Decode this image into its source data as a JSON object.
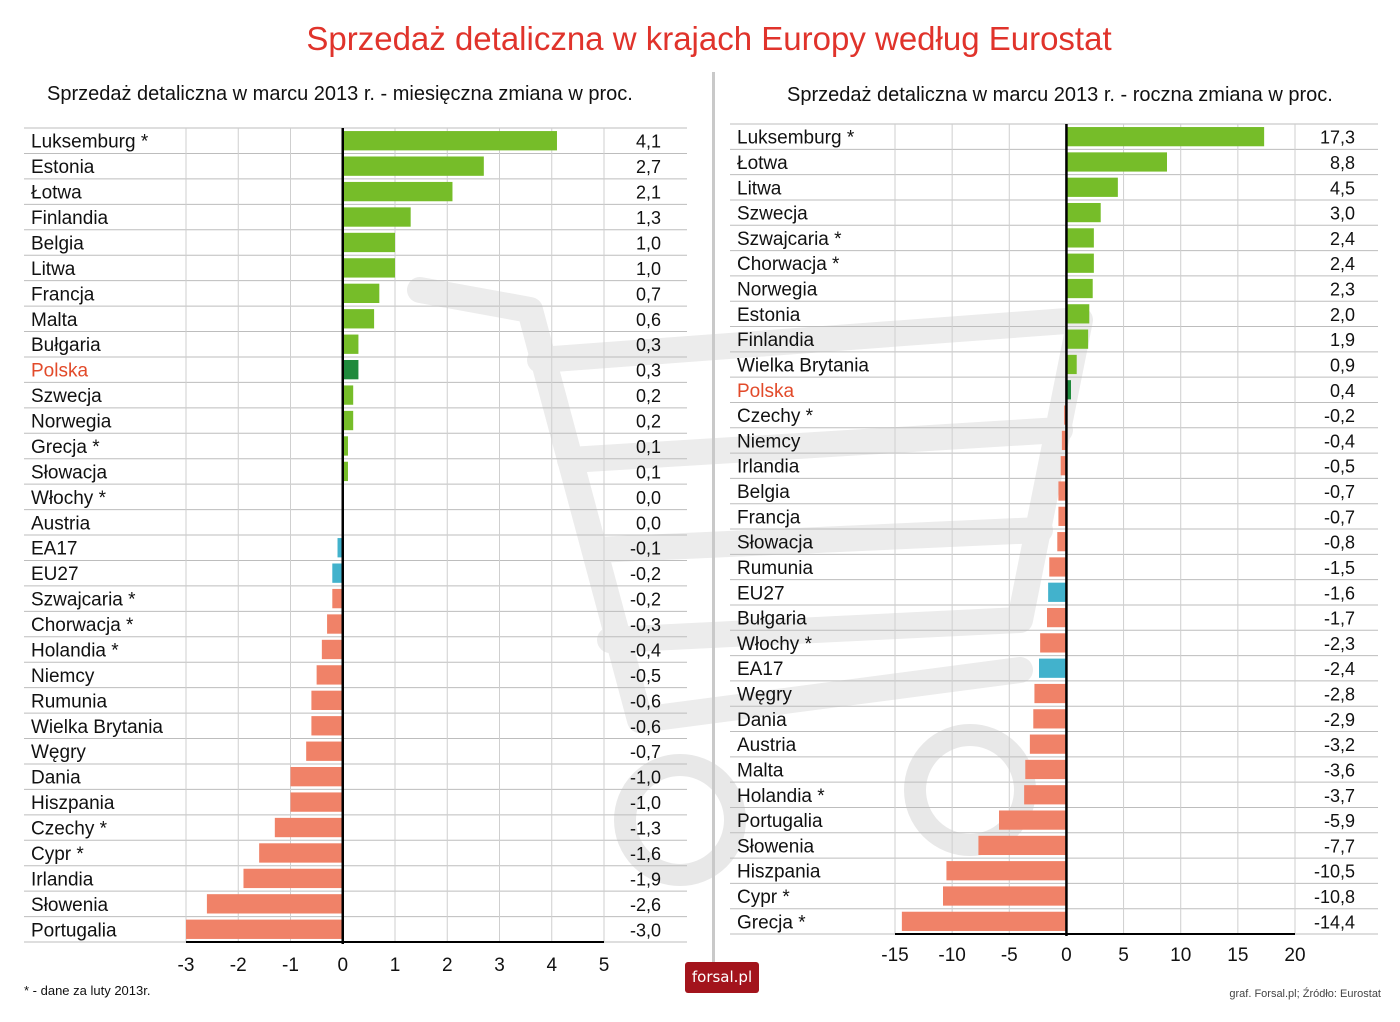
{
  "title": "Sprzedaż detaliczna w krajach Europy według Eurostat",
  "footnote": "* - dane za luty 2013r.",
  "source": "graf. Forsal.pl; Źródło: Eurostat",
  "logo_text": "forsal.pl",
  "colors": {
    "positive": "#76bd29",
    "negative": "#f08268",
    "highlight_bar": "#1f8a3c",
    "aggregate_bar": "#42b2cc",
    "highlight_label": "#e24a2a",
    "title": "#e0332b"
  },
  "chart_data": [
    {
      "type": "bar",
      "orientation": "horizontal",
      "title": "Sprzedaż detaliczna w marcu 2013 r. - miesięczna zmiana w proc.",
      "xlim": [
        -3,
        5
      ],
      "xticks": [
        "-3",
        "-2",
        "-1",
        "0",
        "1",
        "2",
        "3",
        "4",
        "5"
      ],
      "categories": [
        "Luksemburg *",
        "Estonia",
        "Łotwa",
        "Finlandia",
        "Belgia",
        "Litwa",
        "Francja",
        "Malta",
        "Bułgaria",
        "Polska",
        "Szwecja",
        "Norwegia",
        "Grecja *",
        "Słowacja",
        "Włochy *",
        "Austria",
        "EA17",
        "EU27",
        "Szwajcaria *",
        "Chorwacja *",
        "Holandia *",
        "Niemcy",
        "Rumunia",
        "Wielka Brytania",
        "Węgry",
        "Dania",
        "Hiszpania",
        "Czechy *",
        "Cypr *",
        "Irlandia",
        "Słowenia",
        "Portugalia"
      ],
      "values": [
        4.1,
        2.7,
        2.1,
        1.3,
        1.0,
        1.0,
        0.7,
        0.6,
        0.3,
        0.3,
        0.2,
        0.2,
        0.1,
        0.1,
        0.0,
        0.0,
        -0.1,
        -0.2,
        -0.2,
        -0.3,
        -0.4,
        -0.5,
        -0.6,
        -0.6,
        -0.7,
        -1.0,
        -1.0,
        -1.3,
        -1.6,
        -1.9,
        -2.6,
        -3.0
      ],
      "value_labels": [
        "4,1",
        "2,7",
        "2,1",
        "1,3",
        "1,0",
        "1,0",
        "0,7",
        "0,6",
        "0,3",
        "0,3",
        "0,2",
        "0,2",
        "0,1",
        "0,1",
        "0,0",
        "0,0",
        "-0,1",
        "-0,2",
        "-0,2",
        "-0,3",
        "-0,4",
        "-0,5",
        "-0,6",
        "-0,6",
        "-0,7",
        "-1,0",
        "-1,0",
        "-1,3",
        "-1,6",
        "-1,9",
        "-2,6",
        "-3,0"
      ],
      "highlight": [
        "Polska"
      ],
      "aggregates": [
        "EA17",
        "EU27"
      ],
      "grid": true
    },
    {
      "type": "bar",
      "orientation": "horizontal",
      "title": "Sprzedaż detaliczna w marcu 2013 r. - roczna zmiana w proc.",
      "xlim": [
        -15,
        20
      ],
      "xticks": [
        "-15",
        "-10",
        "-5",
        "0",
        "5",
        "10",
        "15",
        "20"
      ],
      "categories": [
        "Luksemburg *",
        "Łotwa",
        "Litwa",
        "Szwecja",
        "Szwajcaria *",
        "Chorwacja *",
        "Norwegia",
        "Estonia",
        "Finlandia",
        "Wielka Brytania",
        "Polska",
        "Czechy *",
        "Niemcy",
        "Irlandia",
        "Belgia",
        "Francja",
        "Słowacja",
        "Rumunia",
        "EU27",
        "Bułgaria",
        "Włochy *",
        "EA17",
        "Węgry",
        "Dania",
        "Austria",
        "Malta",
        "Holandia *",
        "Portugalia",
        "Słowenia",
        "Hiszpania",
        "Cypr *",
        "Grecja *"
      ],
      "values": [
        17.3,
        8.8,
        4.5,
        3.0,
        2.4,
        2.4,
        2.3,
        2.0,
        1.9,
        0.9,
        0.4,
        -0.2,
        -0.4,
        -0.5,
        -0.7,
        -0.7,
        -0.8,
        -1.5,
        -1.6,
        -1.7,
        -2.3,
        -2.4,
        -2.8,
        -2.9,
        -3.2,
        -3.6,
        -3.7,
        -5.9,
        -7.7,
        -10.5,
        -10.8,
        -14.4
      ],
      "value_labels": [
        "17,3",
        "8,8",
        "4,5",
        "3,0",
        "2,4",
        "2,4",
        "2,3",
        "2,0",
        "1,9",
        "0,9",
        "0,4",
        "-0,2",
        "-0,4",
        "-0,5",
        "-0,7",
        "-0,7",
        "-0,8",
        "-1,5",
        "-1,6",
        "-1,7",
        "-2,3",
        "-2,4",
        "-2,8",
        "-2,9",
        "-3,2",
        "-3,6",
        "-3,7",
        "-5,9",
        "-7,7",
        "-10,5",
        "-10,8",
        "-14,4"
      ],
      "highlight": [
        "Polska"
      ],
      "aggregates": [
        "EA17",
        "EU27"
      ],
      "grid": true
    }
  ]
}
